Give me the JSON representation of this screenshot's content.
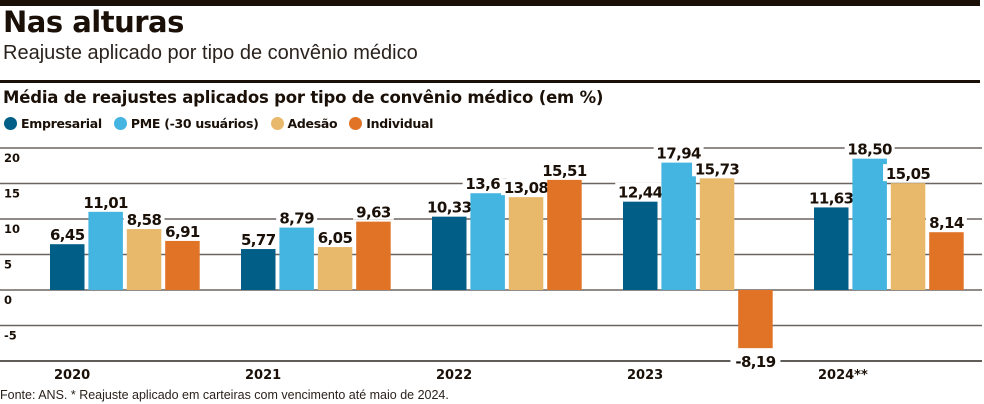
{
  "header": {
    "title": "Nas alturas",
    "subtitle": "Reajuste aplicado por tipo de convênio médico"
  },
  "chart_data": {
    "type": "bar",
    "title": "Média de reajustes aplicados por tipo de convênio médico (em %)",
    "xlabel": "",
    "ylabel": "",
    "categories": [
      "2020",
      "2021",
      "2022",
      "2023",
      "2024**"
    ],
    "series": [
      {
        "name": "Empresarial",
        "color": "#005e87",
        "values": [
          6.45,
          5.77,
          10.33,
          12.44,
          11.63
        ],
        "labels": [
          "6,45",
          "5,77",
          "10,33",
          "12,44",
          "11,63"
        ]
      },
      {
        "name": "PME (-30 usuários)",
        "color": "#43b5e0",
        "values": [
          11.01,
          8.79,
          13.63,
          17.94,
          18.5
        ],
        "labels": [
          "11,01",
          "8,79",
          "13,63",
          "17,94",
          "18,50"
        ]
      },
      {
        "name": "Adesão",
        "color": "#e8b96b",
        "values": [
          8.58,
          6.05,
          13.08,
          15.73,
          15.05
        ],
        "labels": [
          "8,58",
          "6,05",
          "13,08",
          "15,73",
          "15,05"
        ]
      },
      {
        "name": "Individual",
        "color": "#e07326",
        "values": [
          6.91,
          9.63,
          15.51,
          -8.19,
          8.14
        ],
        "labels": [
          "6,91",
          "9,63",
          "15,51",
          "-8,19",
          "8,14"
        ]
      }
    ],
    "yticks": [
      20,
      15,
      10,
      5,
      0,
      -5
    ],
    "ytick_labels": [
      "20",
      "15",
      "10",
      "5",
      "0",
      "-5"
    ],
    "ylim": [
      -10,
      20
    ],
    "grid": true,
    "legend_position": "top-left"
  },
  "source": "Fonte: ANS. * Reajuste aplicado em carteiras com vencimento até maio de 2024."
}
